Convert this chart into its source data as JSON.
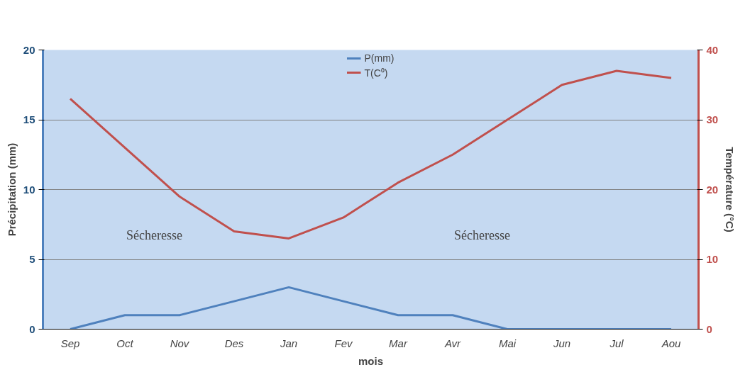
{
  "chart_data": {
    "type": "line",
    "xlabel": "mois",
    "ylabel": "Précipitation (mm)",
    "y2label": "Température (°C)",
    "categories": [
      "Sep",
      "Oct",
      "Nov",
      "Des",
      "Jan",
      "Fev",
      "Mar",
      "Avr",
      "Mai",
      "Jun",
      "Jul",
      "Aou"
    ],
    "series": [
      {
        "name": "P(mm)",
        "color": "#4f81bd",
        "values": [
          0,
          1,
          1,
          2,
          3,
          2,
          1,
          1,
          0,
          0,
          0,
          0
        ]
      },
      {
        "name": "T(C⁰)",
        "color": "#c0504d",
        "axis": "y2",
        "values": [
          33,
          26,
          19,
          14,
          13,
          16,
          21,
          25,
          30,
          35,
          37,
          36
        ]
      }
    ],
    "ylim": [
      0,
      20
    ],
    "yticks": [
      0,
      5,
      10,
      15,
      20
    ],
    "y2lim": [
      0,
      40
    ],
    "y2ticks": [
      0,
      10,
      20,
      30,
      40
    ],
    "grid": "y",
    "legend": "top",
    "marker": "none",
    "line_style": "solid",
    "annotations": [
      "Sécheresse",
      "Sécheresse"
    ]
  }
}
